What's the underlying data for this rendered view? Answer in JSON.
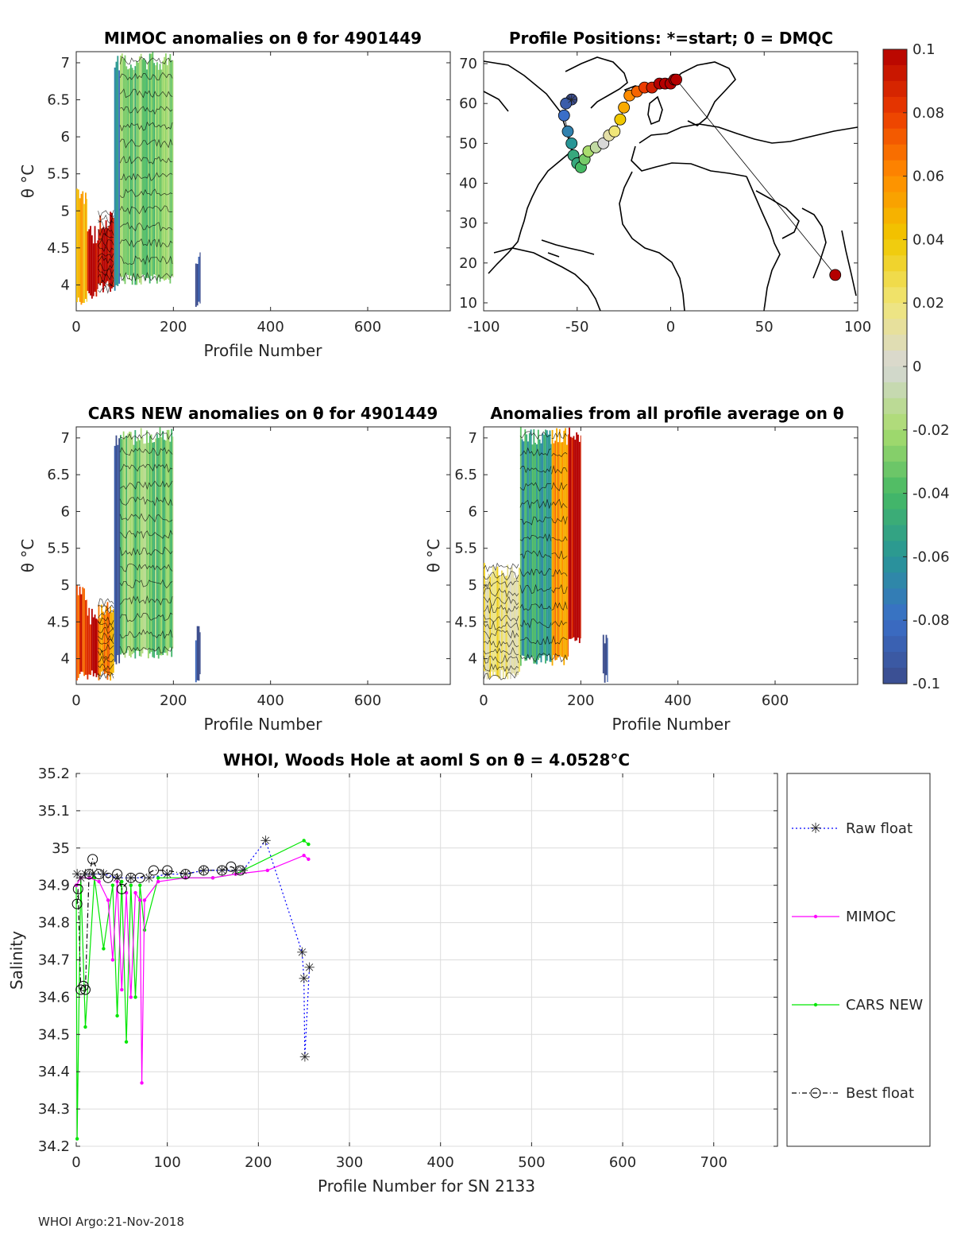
{
  "chart_data": [
    {
      "id": "mimoc",
      "type": "heatmap",
      "title": "MIMOC anomalies on θ  for 4901449",
      "xlabel": "Profile Number",
      "ylabel": "θ °C",
      "xlim": [
        0,
        770
      ],
      "ylim": [
        3.65,
        7.15
      ],
      "xticks": [
        "0",
        "200",
        "400",
        "600"
      ],
      "yticks": [
        "4",
        "4.5",
        "5",
        "5.5",
        "6",
        "6.5",
        "7"
      ],
      "xtick_values": [
        0,
        200,
        400,
        600
      ],
      "ytick_values": [
        4,
        4.5,
        5,
        5.5,
        6,
        6.5,
        7
      ],
      "regions": [
        {
          "x0": 0,
          "x1": 22,
          "y0": 3.7,
          "y1": 5.3,
          "anomaly": 0.05
        },
        {
          "x0": 22,
          "x1": 45,
          "y0": 3.8,
          "y1": 4.8,
          "anomaly": 0.1
        },
        {
          "x0": 45,
          "x1": 78,
          "y0": 3.9,
          "y1": 5.0,
          "anomaly": 0.1
        },
        {
          "x0": 78,
          "x1": 90,
          "y0": 3.9,
          "y1": 7.1,
          "anomaly": -0.07
        },
        {
          "x0": 90,
          "x1": 200,
          "y0": 4.0,
          "y1": 7.15,
          "anomaly": -0.03
        },
        {
          "x0": 245,
          "x1": 256,
          "y0": 3.65,
          "y1": 4.45,
          "anomaly": -0.1
        }
      ]
    },
    {
      "id": "positions",
      "type": "scatter",
      "title": "Profile Positions: *=start; 0 = DMQC",
      "xlim": [
        -100,
        100
      ],
      "ylim": [
        8,
        73
      ],
      "xticks": [
        "-100",
        "-50",
        "0",
        "50",
        "100"
      ],
      "yticks": [
        "10",
        "20",
        "30",
        "40",
        "50",
        "60",
        "70"
      ],
      "xtick_values": [
        -100,
        -50,
        0,
        50,
        100
      ],
      "ytick_values": [
        10,
        20,
        30,
        40,
        50,
        60,
        70
      ],
      "lon": [
        -53,
        -56,
        -57,
        -55,
        -53,
        -52,
        -50,
        -48,
        -46,
        -44,
        -40,
        -36,
        -33,
        -30,
        -27,
        -25,
        -22,
        -18,
        -14,
        -10,
        -6,
        -3,
        0,
        2,
        3,
        88
      ],
      "lat": [
        61,
        60,
        57,
        53,
        50,
        47,
        45,
        44,
        46,
        48,
        49,
        50,
        52,
        53,
        56,
        59,
        62,
        63,
        64,
        64,
        65,
        65,
        65,
        66,
        66,
        17
      ],
      "value": [
        -0.1,
        -0.09,
        -0.08,
        -0.07,
        -0.06,
        -0.05,
        -0.05,
        -0.04,
        -0.03,
        -0.02,
        -0.01,
        0.0,
        0.01,
        0.02,
        0.04,
        0.05,
        0.06,
        0.07,
        0.08,
        0.09,
        0.1,
        0.1,
        0.1,
        0.1,
        0.1,
        0.1
      ]
    },
    {
      "id": "colorbar",
      "type": "colorbar",
      "range": [
        -0.1,
        0.1
      ],
      "ticks": [
        "0.1",
        "0.08",
        "0.06",
        "0.04",
        "0.02",
        "0",
        "-0.02",
        "-0.04",
        "-0.06",
        "-0.08",
        "-0.1"
      ],
      "tick_values": [
        0.1,
        0.08,
        0.06,
        0.04,
        0.02,
        0,
        -0.02,
        -0.04,
        -0.06,
        -0.08,
        -0.1
      ]
    },
    {
      "id": "cars",
      "type": "heatmap",
      "title": "CARS NEW anomalies on θ for 4901449",
      "xlabel": "Profile Number",
      "ylabel": "θ °C",
      "xlim": [
        0,
        770
      ],
      "ylim": [
        3.65,
        7.15
      ],
      "xticks": [
        "0",
        "200",
        "400",
        "600"
      ],
      "yticks": [
        "4",
        "4.5",
        "5",
        "5.5",
        "6",
        "6.5",
        "7"
      ],
      "xtick_values": [
        0,
        200,
        400,
        600
      ],
      "ytick_values": [
        4,
        4.5,
        5,
        5.5,
        6,
        6.5,
        7
      ],
      "regions": [
        {
          "x0": 0,
          "x1": 22,
          "y0": 3.7,
          "y1": 5.0,
          "anomaly": 0.08
        },
        {
          "x0": 22,
          "x1": 45,
          "y0": 3.7,
          "y1": 4.7,
          "anomaly": 0.1
        },
        {
          "x0": 45,
          "x1": 78,
          "y0": 3.7,
          "y1": 4.8,
          "anomaly": 0.06
        },
        {
          "x0": 78,
          "x1": 90,
          "y0": 3.9,
          "y1": 7.1,
          "anomaly": -0.09
        },
        {
          "x0": 90,
          "x1": 200,
          "y0": 4.0,
          "y1": 7.15,
          "anomaly": -0.03
        },
        {
          "x0": 245,
          "x1": 256,
          "y0": 3.65,
          "y1": 4.45,
          "anomaly": -0.1
        }
      ]
    },
    {
      "id": "allavg",
      "type": "heatmap",
      "title": "Anomalies from all profile average on θ",
      "xlabel": "Profile Number",
      "ylabel": "θ °C",
      "xlim": [
        0,
        770
      ],
      "ylim": [
        3.65,
        7.15
      ],
      "xticks": [
        "0",
        "200",
        "400",
        "600"
      ],
      "yticks": [
        "4",
        "4.5",
        "5",
        "5.5",
        "6",
        "6.5",
        "7"
      ],
      "xtick_values": [
        0,
        200,
        400,
        600
      ],
      "ytick_values": [
        4,
        4.5,
        5,
        5.5,
        6,
        6.5,
        7
      ],
      "regions": [
        {
          "x0": 0,
          "x1": 75,
          "y0": 3.7,
          "y1": 5.3,
          "anomaly": 0.02
        },
        {
          "x0": 75,
          "x1": 140,
          "y0": 3.9,
          "y1": 7.15,
          "anomaly": -0.05
        },
        {
          "x0": 140,
          "x1": 175,
          "y0": 3.9,
          "y1": 7.15,
          "anomaly": 0.06
        },
        {
          "x0": 175,
          "x1": 200,
          "y0": 4.2,
          "y1": 7.15,
          "anomaly": 0.1
        },
        {
          "x0": 245,
          "x1": 256,
          "y0": 3.65,
          "y1": 4.45,
          "anomaly": -0.1
        }
      ]
    },
    {
      "id": "salinity",
      "type": "line",
      "title": "WHOI, Woods Hole at aoml S on θ = 4.0528°C",
      "xlabel": "Profile Number for SN 2133",
      "ylabel": "Salinity",
      "xlim": [
        0,
        770
      ],
      "ylim": [
        34.2,
        35.2
      ],
      "xticks": [
        "0",
        "100",
        "200",
        "300",
        "400",
        "500",
        "600",
        "700"
      ],
      "yticks": [
        "34.2",
        "34.3",
        "34.4",
        "34.5",
        "34.6",
        "34.7",
        "34.8",
        "34.9",
        "35",
        "35.1",
        "35.2"
      ],
      "xtick_values": [
        0,
        100,
        200,
        300,
        400,
        500,
        600,
        700
      ],
      "ytick_values": [
        34.2,
        34.3,
        34.4,
        34.5,
        34.6,
        34.7,
        34.8,
        34.9,
        35,
        35.1,
        35.2
      ],
      "legend": [
        "Raw float",
        "MIMOC",
        "CARS NEW",
        "Best float"
      ],
      "series": [
        {
          "name": "Raw float",
          "color": "#0000ff",
          "x": [
            1,
            5,
            10,
            18,
            30,
            45,
            60,
            80,
            100,
            120,
            140,
            160,
            175,
            183,
            208,
            248,
            250,
            251,
            256
          ],
          "y": [
            34.93,
            34.92,
            34.93,
            34.93,
            34.93,
            34.92,
            34.92,
            34.92,
            34.93,
            34.93,
            34.94,
            34.94,
            34.94,
            34.94,
            35.02,
            34.72,
            34.65,
            34.44,
            34.68
          ]
        },
        {
          "name": "MIMOC",
          "color": "#ff00ff",
          "x": [
            0,
            5,
            15,
            25,
            35,
            40,
            45,
            50,
            55,
            60,
            65,
            70,
            72,
            75,
            90,
            120,
            150,
            175,
            210,
            250,
            255
          ],
          "y": [
            34.9,
            34.92,
            34.92,
            34.91,
            34.86,
            34.7,
            34.91,
            34.62,
            34.88,
            34.6,
            34.88,
            34.86,
            34.37,
            34.86,
            34.91,
            34.92,
            34.92,
            34.93,
            34.94,
            34.98,
            34.97
          ]
        },
        {
          "name": "CARS NEW",
          "color": "#00e600",
          "x": [
            0,
            1,
            5,
            10,
            20,
            30,
            40,
            45,
            50,
            55,
            60,
            65,
            70,
            75,
            90,
            120,
            150,
            175,
            250,
            255
          ],
          "y": [
            34.9,
            34.22,
            34.92,
            34.52,
            34.92,
            34.73,
            34.9,
            34.55,
            34.91,
            34.48,
            34.9,
            34.6,
            34.9,
            34.78,
            34.92,
            34.92,
            34.92,
            34.93,
            35.02,
            35.01
          ]
        },
        {
          "name": "Best float",
          "color": "#000000",
          "x": [
            1,
            2,
            5,
            8,
            10,
            14,
            18,
            25,
            35,
            45,
            50,
            60,
            70,
            85,
            100,
            120,
            140,
            160,
            170,
            180
          ],
          "y": [
            34.85,
            34.89,
            34.62,
            34.63,
            34.62,
            34.93,
            34.97,
            34.93,
            34.92,
            34.93,
            34.89,
            34.92,
            34.92,
            34.94,
            34.94,
            34.93,
            34.94,
            34.94,
            34.95,
            34.94
          ]
        }
      ]
    }
  ],
  "footer": "WHOI Argo:21-Nov-2018"
}
